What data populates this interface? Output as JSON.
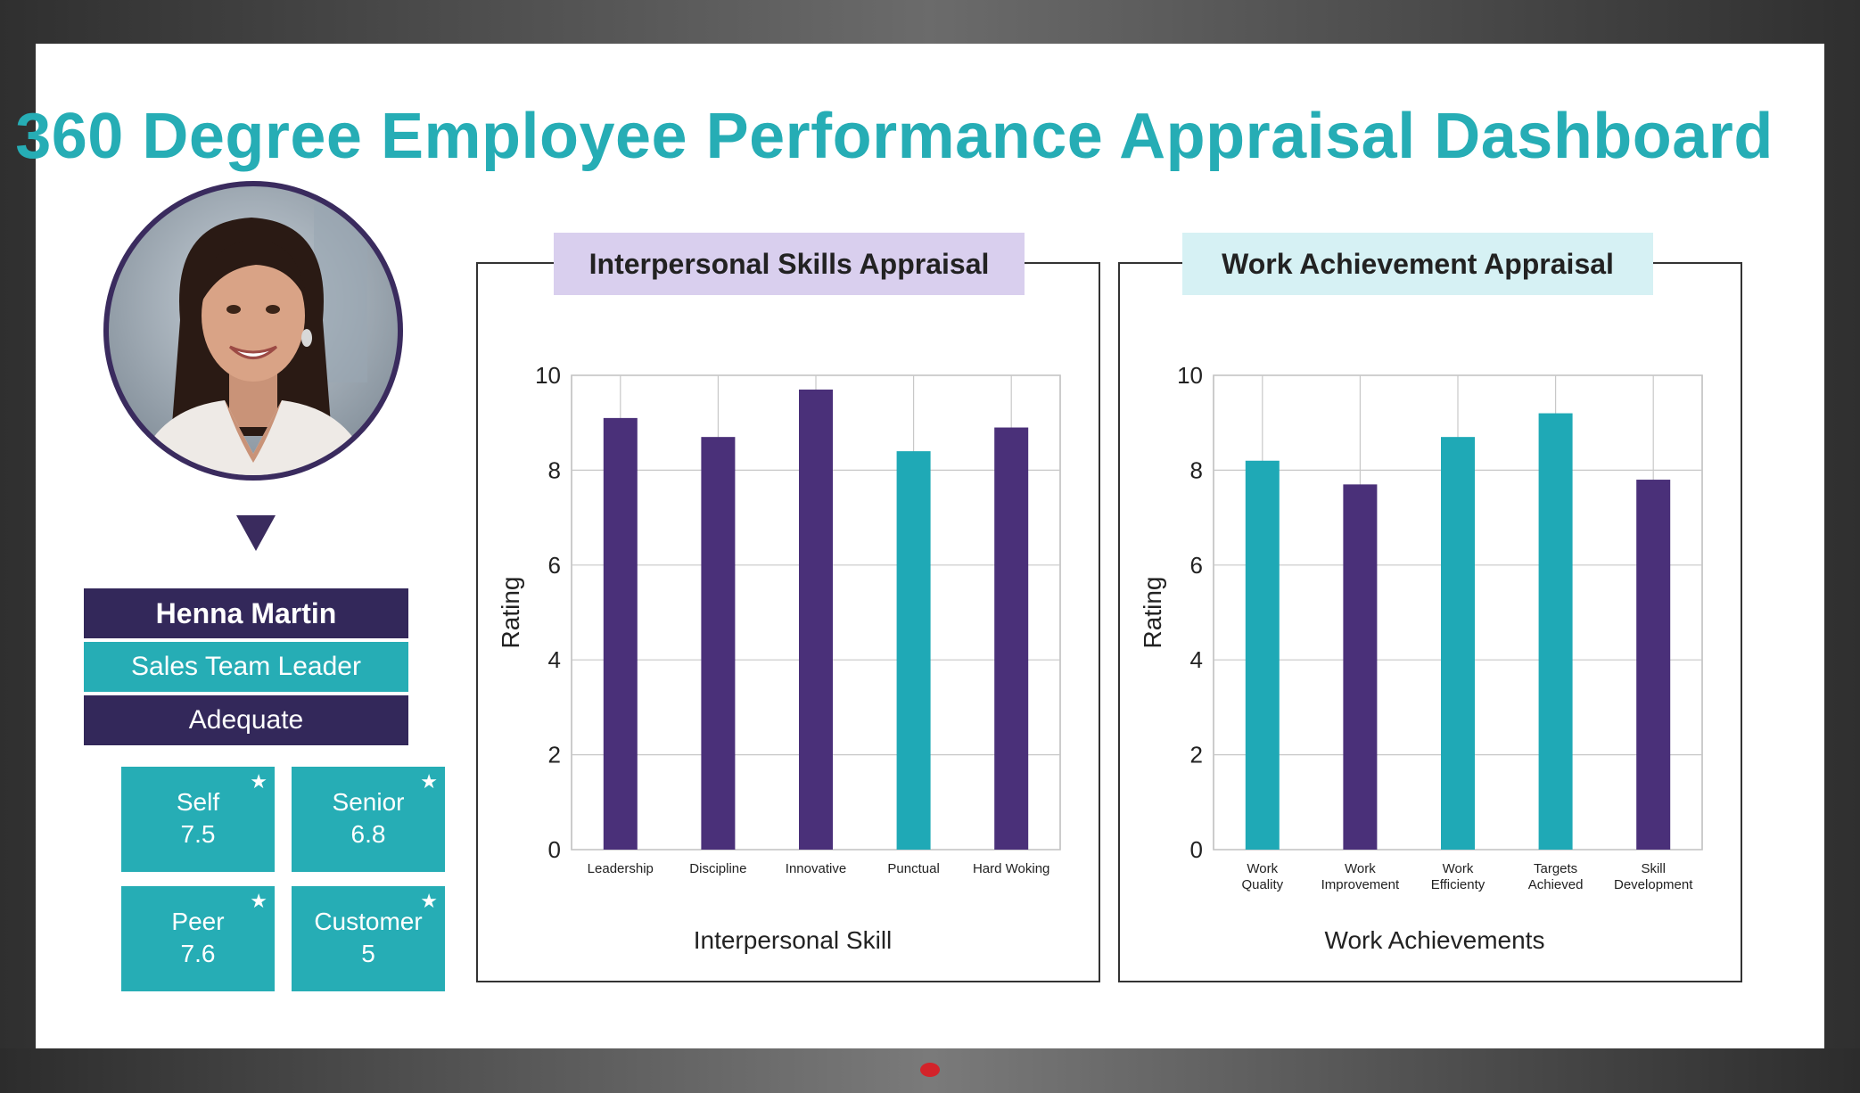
{
  "title": "360 Degree Employee Performance Appraisal Dashboard",
  "profile": {
    "name": "Henna Martin",
    "role": "Sales Team Leader",
    "rating": "Adequate",
    "scores": [
      {
        "label": "Self",
        "value": "7.5"
      },
      {
        "label": "Senior",
        "value": "6.8"
      },
      {
        "label": "Peer",
        "value": "7.6"
      },
      {
        "label": "Customer",
        "value": "5"
      }
    ]
  },
  "colors": {
    "accent": "#26adb5",
    "purple": "#4a3079",
    "teal": "#1fa9b6",
    "navy": "#33285a"
  },
  "icons": {
    "score_badge": "star-icon"
  },
  "chart_data": [
    {
      "type": "bar",
      "tab_label": "Interpersonal Skills Appraisal",
      "categories": [
        "Leadership",
        "Discipline",
        "Innovative",
        "Punctual",
        "Hard Woking"
      ],
      "values": [
        9.1,
        8.7,
        9.7,
        8.4,
        8.9
      ],
      "bar_colors": [
        "#4a3079",
        "#4a3079",
        "#4a3079",
        "#1fa9b6",
        "#4a3079"
      ],
      "xlabel": "Interpersonal Skill",
      "ylabel": "Rating",
      "ylim": [
        0,
        10
      ],
      "yticks": [
        0,
        2,
        4,
        6,
        8,
        10
      ],
      "grid": true
    },
    {
      "type": "bar",
      "tab_label": "Work Achievement Appraisal",
      "categories": [
        [
          "Work",
          "Quality"
        ],
        [
          "Work",
          "Improvement"
        ],
        [
          "Work",
          "Efficienty"
        ],
        [
          "Targets",
          "Achieved"
        ],
        [
          "Skill",
          "Development"
        ]
      ],
      "values": [
        8.2,
        7.7,
        8.7,
        9.2,
        7.8
      ],
      "bar_colors": [
        "#1fa9b6",
        "#4a3079",
        "#1fa9b6",
        "#1fa9b6",
        "#4a3079"
      ],
      "xlabel": "Work Achievements",
      "ylabel": "Rating",
      "ylim": [
        0,
        10
      ],
      "yticks": [
        0,
        2,
        4,
        6,
        8,
        10
      ],
      "grid": true
    }
  ]
}
